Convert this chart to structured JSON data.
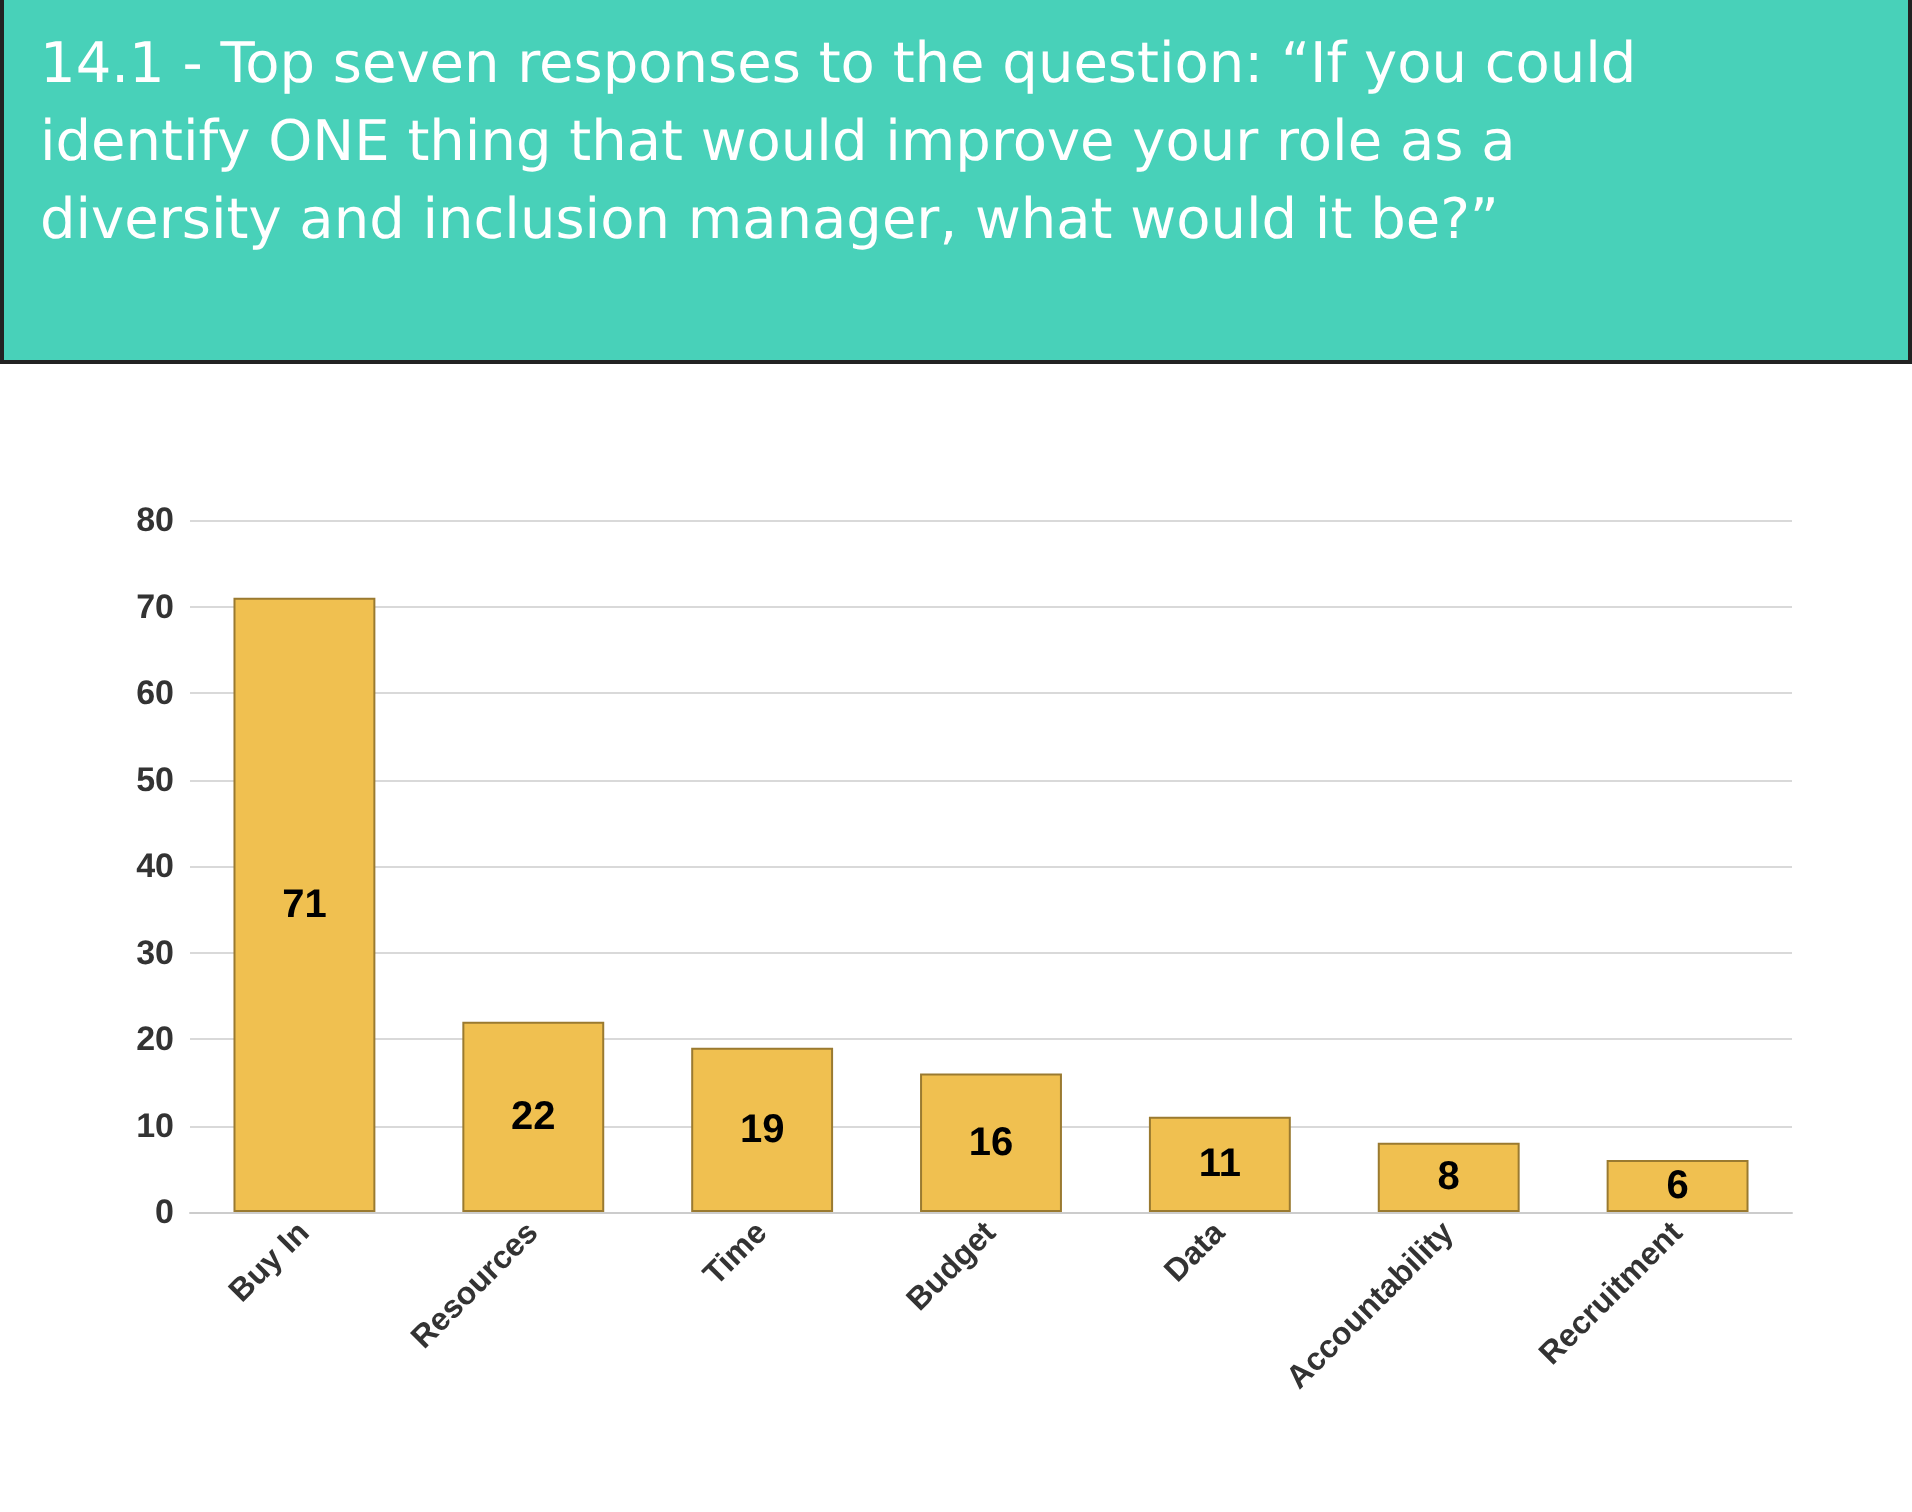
{
  "chart_data": {
    "type": "bar",
    "title": "14.1 - Top seven responses to the question: “If you could identify ONE thing that would improve your role as a diversity and inclusion manager, what would it be?”",
    "categories": [
      "Buy In",
      "Resources",
      "Time",
      "Budget",
      "Data",
      "Accountability",
      "Recruitment"
    ],
    "values": [
      71,
      22,
      19,
      16,
      11,
      8,
      6
    ],
    "color": "#f0c050",
    "ylim": [
      0,
      80
    ],
    "yticks": [
      0,
      10,
      20,
      30,
      40,
      50,
      60,
      70,
      80
    ],
    "grid": "y",
    "data_labels": true
  }
}
